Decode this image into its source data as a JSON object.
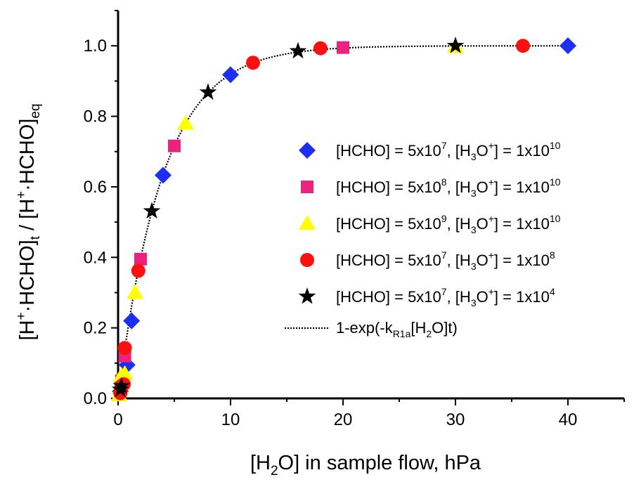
{
  "chart_data": {
    "type": "scatter",
    "xlabel": {
      "prefix": "[H",
      "sub": "2",
      "suffix": "O] in sample flow, hPa"
    },
    "ylabel": {
      "p1": "[H",
      "sup1": "+",
      "p2": "·HCHO]",
      "sub1": "t",
      "p3": " / [H",
      "sup2": "+",
      "p4": "·HCHO]",
      "sub2": "eq"
    },
    "xlim": [
      0,
      45
    ],
    "ylim": [
      0,
      1.1
    ],
    "xticks": [
      "0",
      "10",
      "20",
      "30",
      "40"
    ],
    "yticks": [
      "0.0",
      "0.2",
      "0.4",
      "0.6",
      "0.8",
      "1.0"
    ],
    "x_tick_values": [
      0,
      10,
      20,
      30,
      40
    ],
    "y_tick_values": [
      0,
      0.2,
      0.4,
      0.6,
      0.8,
      1.0
    ],
    "x_minor_step": 5,
    "y_minor_step": 0.1,
    "legend_position": "right",
    "series": [
      {
        "name": "[HCHO] = 5x10^7, [H3O+] = 1x10^10",
        "label": {
          "a": "[HCHO] = 5x10",
          "a_sup": "7",
          "b": ", [H",
          "b_sub": "3",
          "c": "O",
          "c_sup": "+",
          "d": "] = 1x10",
          "d_sup": "10"
        },
        "marker": "diamond",
        "color": "#1d2ff5",
        "points": [
          [
            0.2,
            0.02
          ],
          [
            0.4,
            0.045
          ],
          [
            0.8,
            0.095
          ],
          [
            1.2,
            0.22
          ],
          [
            4,
            0.633
          ],
          [
            10,
            0.918
          ],
          [
            40,
            1.0
          ]
        ]
      },
      {
        "name": "[HCHO] = 5x10^8, [H3O+] = 1x10^10",
        "label": {
          "a": "[HCHO] = 5x10",
          "a_sup": "8",
          "b": ", [H",
          "b_sub": "3",
          "c": "O",
          "c_sup": "+",
          "d": "] = 1x10",
          "d_sup": "10"
        },
        "marker": "square",
        "color": "#e8247f",
        "points": [
          [
            0.3,
            0.05
          ],
          [
            0.6,
            0.12
          ],
          [
            2,
            0.395
          ],
          [
            5,
            0.716
          ],
          [
            20,
            0.995
          ]
        ]
      },
      {
        "name": "[HCHO] = 5x10^9, [H3O+] = 1x10^10",
        "label": {
          "a": "[HCHO] = 5x10",
          "a_sup": "9",
          "b": ", [H",
          "b_sub": "3",
          "c": "O",
          "c_sup": "+",
          "d": "] = 1x10",
          "d_sup": "10"
        },
        "marker": "triangle",
        "color": "#ffff00",
        "points": [
          [
            0.1,
            0.01
          ],
          [
            0.2,
            0.03
          ],
          [
            0.3,
            0.065
          ],
          [
            0.6,
            0.07
          ],
          [
            1.5,
            0.3
          ],
          [
            6,
            0.78
          ],
          [
            30,
            0.998
          ]
        ]
      },
      {
        "name": "[HCHO] = 5x10^7, [H3O+] = 1x10^8",
        "label": {
          "a": "[HCHO] = 5x10",
          "a_sup": "7",
          "b": ", [H",
          "b_sub": "3",
          "c": "O",
          "c_sup": "+",
          "d": "] = 1x10",
          "d_sup": "8"
        },
        "marker": "circle",
        "color": "#ff0f0f",
        "points": [
          [
            0.2,
            0.015
          ],
          [
            0.3,
            0.035
          ],
          [
            0.5,
            0.04
          ],
          [
            0.6,
            0.143
          ],
          [
            1.8,
            0.362
          ],
          [
            12,
            0.952
          ],
          [
            18,
            0.993
          ],
          [
            36,
            1.0
          ]
        ]
      },
      {
        "name": "[HCHO] = 5x10^7, [H3O+] = 1x10^4",
        "label": {
          "a": "[HCHO] = 5x10",
          "a_sup": "7",
          "b": ", [H",
          "b_sub": "3",
          "c": "O",
          "c_sup": "+",
          "d": "] = 1x10",
          "d_sup": "4"
        },
        "marker": "star",
        "color": "#000000",
        "points": [
          [
            0.2,
            0.025
          ],
          [
            0.3,
            0.035
          ],
          [
            3,
            0.531
          ],
          [
            8,
            0.868
          ],
          [
            16,
            0.985
          ],
          [
            30,
            1.0
          ]
        ]
      }
    ],
    "fit": {
      "name": "1-exp(-kR1a[H2O]t)",
      "label": {
        "a": "1-exp(-k",
        "a_sub": "R1a",
        "b": "[H",
        "b_sub": "2",
        "c": "O]t)"
      },
      "style": "dotted",
      "color": "#000000",
      "rate": 0.252
    }
  }
}
